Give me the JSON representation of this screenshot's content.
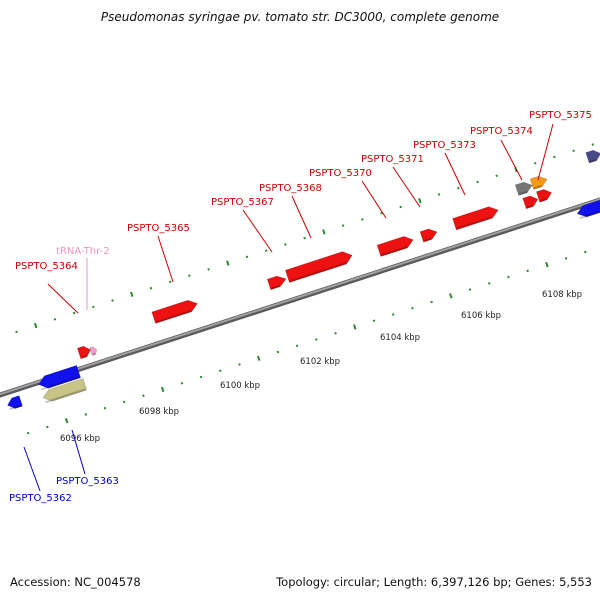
{
  "title": "Pseudomonas syringae pv. tomato str. DC3000, complete genome",
  "footer": {
    "accession": "Accession: NC_004578",
    "topology": "Topology: circular; Length: 6,397,126 bp; Genes: 5,553"
  },
  "colors": {
    "backbone": "#8c8c8c",
    "tick": "#2a8a2a",
    "gene_red": "#ee1111",
    "gene_blue": "#1111ee",
    "gene_khaki": "#c8c488",
    "gene_pink": "#f0a0c8",
    "gene_gray": "#777777",
    "gene_orange": "#f59a14",
    "gene_navy": "#4a4a88",
    "label_red": "#cc0000",
    "label_blue": "#0000cc",
    "label_pink": "#e898c0"
  },
  "scale_labels": [
    "6096 kbp",
    "6098 kbp",
    "6100 kbp",
    "6102 kbp",
    "6104 kbp",
    "6106 kbp",
    "6108 kbp"
  ],
  "gene_labels": [
    {
      "text": "PSPTO_5364",
      "color": "label_red"
    },
    {
      "text": "tRNA-Thr-2",
      "color": "label_pink"
    },
    {
      "text": "PSPTO_5365",
      "color": "label_red"
    },
    {
      "text": "PSPTO_5367",
      "color": "label_red"
    },
    {
      "text": "PSPTO_5368",
      "color": "label_red"
    },
    {
      "text": "PSPTO_5370",
      "color": "label_red"
    },
    {
      "text": "PSPTO_5371",
      "color": "label_red"
    },
    {
      "text": "PSPTO_5373",
      "color": "label_red"
    },
    {
      "text": "PSPTO_5374",
      "color": "label_red"
    },
    {
      "text": "PSPTO_5375",
      "color": "label_red"
    },
    {
      "text": "PSPTO_5362",
      "color": "label_blue"
    },
    {
      "text": "PSPTO_5363",
      "color": "label_blue"
    }
  ]
}
